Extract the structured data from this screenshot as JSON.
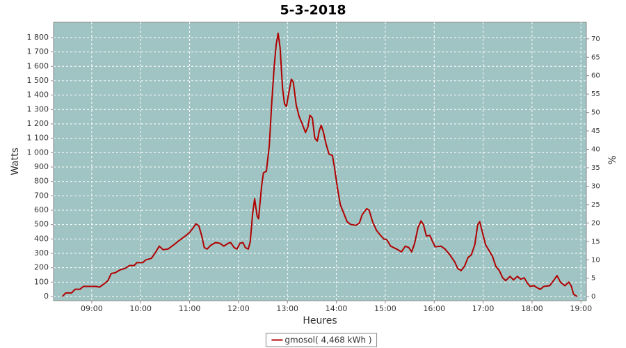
{
  "chart_data": {
    "type": "line",
    "title": "5-3-2018",
    "xlabel": "Heures",
    "ylabel": "Watts",
    "y2label": "%",
    "x": [
      8.4,
      8.47,
      8.59,
      8.66,
      8.76,
      8.83,
      8.97,
      9.09,
      9.16,
      9.26,
      9.33,
      9.4,
      9.48,
      9.58,
      9.68,
      9.77,
      9.87,
      9.92,
      10.04,
      10.11,
      10.22,
      10.31,
      10.38,
      10.46,
      10.56,
      10.68,
      10.79,
      10.91,
      11.0,
      11.08,
      11.13,
      11.19,
      11.25,
      11.3,
      11.36,
      11.43,
      11.53,
      11.62,
      11.7,
      11.79,
      11.84,
      11.91,
      11.97,
      12.03,
      12.09,
      12.14,
      12.2,
      12.24,
      12.29,
      12.33,
      12.38,
      12.41,
      12.47,
      12.51,
      12.57,
      12.63,
      12.68,
      12.73,
      12.77,
      12.81,
      12.85,
      12.9,
      12.94,
      12.98,
      13.02,
      13.08,
      13.12,
      13.18,
      13.24,
      13.29,
      13.37,
      13.42,
      13.46,
      13.51,
      13.56,
      13.61,
      13.65,
      13.69,
      13.73,
      13.79,
      13.85,
      13.92,
      13.96,
      14.02,
      14.08,
      14.15,
      14.22,
      14.3,
      14.4,
      14.47,
      14.53,
      14.62,
      14.67,
      14.74,
      14.82,
      14.89,
      14.97,
      15.03,
      15.11,
      15.23,
      15.33,
      15.41,
      15.48,
      15.54,
      15.6,
      15.67,
      15.73,
      15.78,
      15.84,
      15.91,
      15.97,
      16.02,
      16.14,
      16.22,
      16.32,
      16.42,
      16.48,
      16.55,
      16.62,
      16.69,
      16.76,
      16.83,
      16.89,
      16.93,
      16.99,
      17.05,
      17.12,
      17.19,
      17.26,
      17.33,
      17.4,
      17.46,
      17.55,
      17.62,
      17.7,
      17.77,
      17.84,
      17.9,
      17.96,
      18.04,
      18.11,
      18.17,
      18.24,
      18.36,
      18.46,
      18.51,
      18.58,
      18.67,
      18.75,
      18.8,
      18.85,
      18.92
    ],
    "series": [
      {
        "name": "gmosol( 4,468 kWh )",
        "color": "#b00000",
        "values": [
          0,
          25,
          25,
          50,
          50,
          70,
          70,
          70,
          65,
          90,
          110,
          160,
          165,
          185,
          195,
          215,
          215,
          235,
          235,
          255,
          265,
          310,
          350,
          325,
          330,
          360,
          390,
          420,
          445,
          480,
          505,
          490,
          420,
          340,
          330,
          355,
          375,
          370,
          350,
          370,
          375,
          340,
          330,
          370,
          375,
          340,
          330,
          380,
          580,
          680,
          560,
          540,
          760,
          860,
          870,
          1050,
          1350,
          1600,
          1750,
          1830,
          1730,
          1450,
          1340,
          1320,
          1400,
          1510,
          1490,
          1330,
          1250,
          1210,
          1140,
          1180,
          1260,
          1240,
          1100,
          1080,
          1150,
          1190,
          1150,
          1060,
          990,
          980,
          900,
          760,
          640,
          580,
          520,
          500,
          495,
          510,
          570,
          610,
          600,
          520,
          460,
          430,
          400,
          395,
          350,
          330,
          310,
          350,
          340,
          310,
          370,
          480,
          525,
          500,
          420,
          425,
          380,
          345,
          350,
          330,
          290,
          240,
          195,
          180,
          210,
          270,
          290,
          360,
          500,
          520,
          440,
          360,
          320,
          280,
          210,
          180,
          130,
          110,
          140,
          115,
          140,
          120,
          130,
          95,
          70,
          75,
          60,
          50,
          70,
          75,
          120,
          145,
          100,
          75,
          100,
          75,
          15,
          0
        ]
      }
    ],
    "xlim": [
      8.22,
      19.11
    ],
    "xticks": [
      {
        "value": 9,
        "label": "09:00"
      },
      {
        "value": 10,
        "label": "10:00"
      },
      {
        "value": 11,
        "label": "11:00"
      },
      {
        "value": 12,
        "label": "12:00"
      },
      {
        "value": 13,
        "label": "13:00"
      },
      {
        "value": 14,
        "label": "14:00"
      },
      {
        "value": 15,
        "label": "15:00"
      },
      {
        "value": 16,
        "label": "16:00"
      },
      {
        "value": 17,
        "label": "17:00"
      },
      {
        "value": 18,
        "label": "18:00"
      },
      {
        "value": 19,
        "label": "19:00"
      }
    ],
    "ylim": [
      -29,
      1906
    ],
    "yticks": [
      0,
      100,
      200,
      300,
      400,
      500,
      600,
      700,
      800,
      900,
      {
        "value": 1000,
        "label": "1 000"
      },
      {
        "value": 1100,
        "label": "1 100"
      },
      {
        "value": 1200,
        "label": "1 200"
      },
      {
        "value": 1300,
        "label": "1 300"
      },
      {
        "value": 1400,
        "label": "1 400"
      },
      {
        "value": 1500,
        "label": "1 500"
      },
      {
        "value": 1600,
        "label": "1 600"
      },
      {
        "value": 1700,
        "label": "1 700"
      },
      {
        "value": 1800,
        "label": "1 800"
      }
    ],
    "y2lim": [
      -1.1,
      74.5
    ],
    "y2ticks": [
      0,
      5,
      10,
      15,
      20,
      25,
      30,
      35,
      40,
      45,
      50,
      55,
      60,
      65,
      70
    ],
    "grid": true,
    "legend": "bottom",
    "plot_color": "#a0c4c3"
  }
}
